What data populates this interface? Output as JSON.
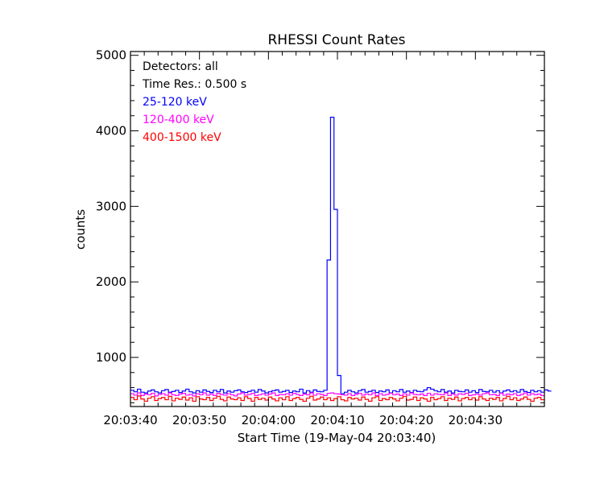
{
  "chart_data": {
    "type": "line",
    "step": true,
    "title": "RHESSI Count Rates",
    "xlabel": "Start Time (19-May-04 20:03:40)",
    "ylabel": "counts",
    "x_unit": "seconds from 20:03:40",
    "xlim": [
      0,
      60
    ],
    "ylim": [
      350,
      5050
    ],
    "x_ticks": [
      {
        "value": 0,
        "label": "20:03:40"
      },
      {
        "value": 10,
        "label": "20:03:50"
      },
      {
        "value": 20,
        "label": "20:04:00"
      },
      {
        "value": 30,
        "label": "20:04:10"
      },
      {
        "value": 40,
        "label": "20:04:20"
      },
      {
        "value": 50,
        "label": "20:04:30"
      }
    ],
    "y_ticks": [
      {
        "value": 1000,
        "label": "1000"
      },
      {
        "value": 2000,
        "label": "2000"
      },
      {
        "value": 3000,
        "label": "3000"
      },
      {
        "value": 4000,
        "label": "4000"
      },
      {
        "value": 5000,
        "label": "5000"
      }
    ],
    "annotations": [
      "Detectors: all",
      "Time Res.: 0.500 s"
    ],
    "legend_position": "top-left",
    "bin_width_s": 0.5,
    "series": [
      {
        "name": "25-120 keV",
        "color": "#0000ff",
        "values": [
          565,
          545,
          580,
          540,
          530,
          555,
          570,
          545,
          530,
          560,
          575,
          540,
          550,
          565,
          535,
          555,
          580,
          545,
          530,
          560,
          540,
          570,
          550,
          535,
          565,
          545,
          575,
          530,
          555,
          540,
          560,
          570,
          545,
          535,
          550,
          565,
          540,
          575,
          555,
          530,
          545,
          560,
          570,
          540,
          550,
          565,
          535,
          555,
          545,
          580,
          530,
          560,
          540,
          570,
          550,
          545,
          565,
          2290,
          4180,
          2960,
          760,
          520,
          540,
          565,
          545,
          530,
          560,
          575,
          540,
          550,
          565,
          535,
          555,
          545,
          570,
          530,
          560,
          545,
          575,
          540,
          555,
          535,
          565,
          550,
          545,
          570,
          600,
          580,
          560,
          545,
          575,
          540,
          555,
          530,
          565,
          550,
          545,
          570,
          540,
          560,
          535,
          575,
          550,
          545,
          565,
          540,
          560,
          530,
          555,
          570,
          545,
          560,
          540,
          575,
          550,
          535,
          565,
          545,
          560,
          540,
          570,
          555
        ]
      },
      {
        "name": "120-400 keV",
        "color": "#ff00ff",
        "values": [
          520,
          500,
          530,
          495,
          515,
          505,
          525,
          490,
          510,
          520,
          500,
          530,
          505,
          495,
          515,
          525,
          500,
          510,
          490,
          520,
          505,
          530,
          500,
          515,
          495,
          525,
          510,
          500,
          520,
          505,
          490,
          515,
          530,
          500,
          510,
          525,
          495,
          505,
          520,
          500,
          515,
          530,
          495,
          510,
          505,
          520,
          500,
          525,
          510,
          495,
          515,
          505,
          530,
          500,
          520,
          510,
          495,
          525,
          530,
          520,
          515,
          505,
          500,
          520,
          495,
          510,
          525,
          500,
          515,
          505,
          530,
          495,
          520,
          500,
          510,
          525,
          505,
          515,
          495,
          520,
          500,
          530,
          510,
          505,
          515,
          495,
          525,
          500,
          520,
          510,
          505,
          530,
          495,
          515,
          500,
          520,
          510,
          525,
          495,
          505,
          515,
          500,
          520,
          530,
          505,
          510,
          495,
          525,
          500,
          515,
          505,
          520,
          495,
          510,
          530,
          500,
          520,
          505,
          515,
          495
        ]
      },
      {
        "name": "400-1500 keV",
        "color": "#ff0000",
        "values": [
          470,
          440,
          490,
          450,
          420,
          460,
          480,
          430,
          455,
          470,
          440,
          485,
          425,
          460,
          445,
          475,
          435,
          465,
          420,
          480,
          450,
          440,
          470,
          430,
          460,
          485,
          445,
          425,
          475,
          450,
          440,
          465,
          430,
          480,
          455,
          420,
          470,
          445,
          460,
          435,
          475,
          450,
          425,
          465,
          440,
          480,
          430,
          455,
          470,
          445,
          420,
          460,
          485,
          435,
          450,
          475,
          440,
          465,
          430,
          455,
          480,
          440,
          425,
          470,
          450,
          460,
          435,
          475,
          445,
          420,
          465,
          480,
          430,
          455,
          440,
          470,
          450,
          425,
          460,
          485,
          435,
          445,
          475,
          430,
          465,
          450,
          420,
          470,
          440,
          455,
          480,
          430,
          460,
          445,
          475,
          425,
          455,
          470,
          440,
          465,
          435,
          480,
          450,
          430,
          460,
          445,
          470,
          425,
          455,
          485,
          440,
          465,
          430,
          450,
          475,
          445,
          420,
          460,
          470,
          440
        ]
      }
    ]
  }
}
